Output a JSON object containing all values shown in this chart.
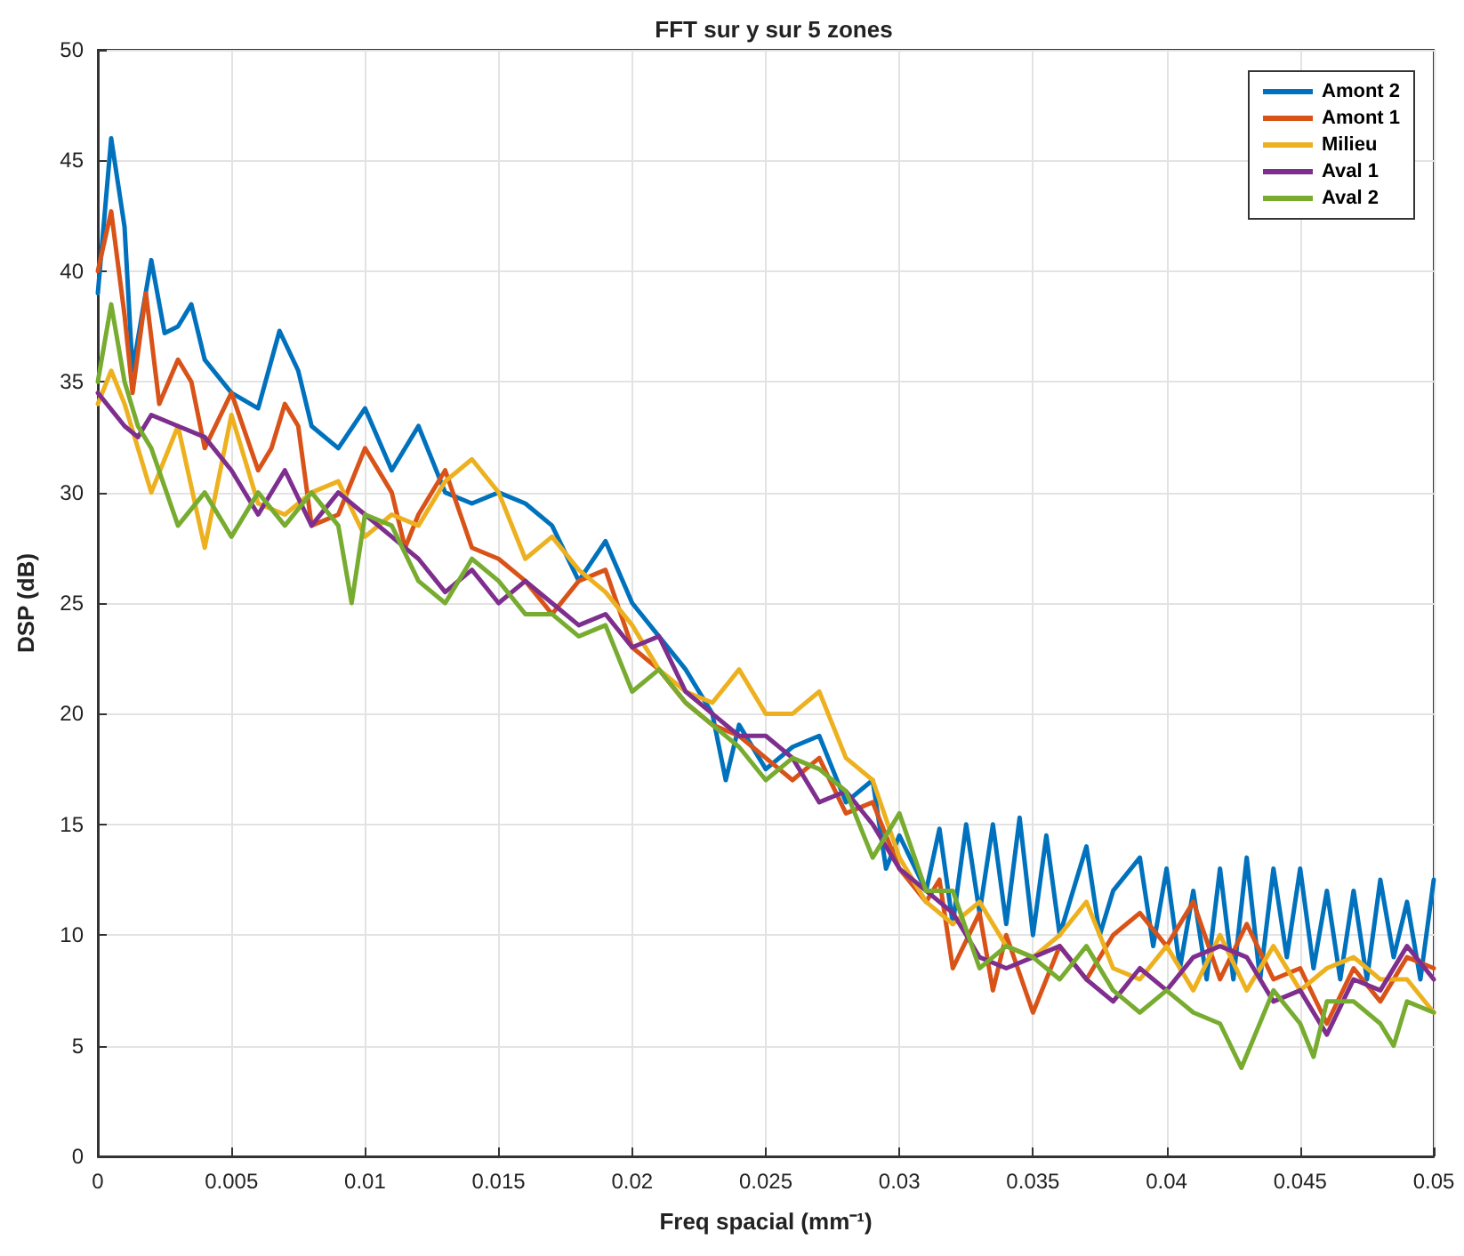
{
  "chart_data": {
    "type": "line",
    "title": "FFT sur y sur 5 zones",
    "xlabel": "Freq spacial (mm⁻¹)",
    "ylabel": "DSP (dB)",
    "xlim": [
      0,
      0.05
    ],
    "xticks": [
      0,
      0.005,
      0.01,
      0.015,
      0.02,
      0.025,
      0.03,
      0.035,
      0.04,
      0.045,
      0.05
    ],
    "ylim": [
      0,
      50
    ],
    "yticks": [
      0,
      5,
      10,
      15,
      20,
      25,
      30,
      35,
      40,
      45,
      50
    ],
    "grid": true,
    "legend": "top right",
    "line_style": "solid",
    "marker": "none",
    "series": [
      {
        "name": "Amont 2",
        "color": "#0072bd",
        "x": [
          0,
          0.0005,
          0.001,
          0.0013,
          0.002,
          0.0025,
          0.003,
          0.0035,
          0.004,
          0.005,
          0.006,
          0.0068,
          0.0075,
          0.008,
          0.009,
          0.01,
          0.011,
          0.012,
          0.013,
          0.014,
          0.015,
          0.016,
          0.017,
          0.018,
          0.019,
          0.02,
          0.021,
          0.022,
          0.023,
          0.0235,
          0.024,
          0.025,
          0.026,
          0.027,
          0.028,
          0.029,
          0.0295,
          0.03,
          0.031,
          0.0315,
          0.032,
          0.0325,
          0.033,
          0.0335,
          0.034,
          0.0345,
          0.035,
          0.0355,
          0.036,
          0.037,
          0.0375,
          0.038,
          0.039,
          0.0395,
          0.04,
          0.0405,
          0.041,
          0.0415,
          0.042,
          0.0425,
          0.043,
          0.0435,
          0.044,
          0.0445,
          0.045,
          0.0455,
          0.046,
          0.0465,
          0.047,
          0.0475,
          0.048,
          0.0485,
          0.049,
          0.0495,
          0.05
        ],
        "values": [
          39,
          46,
          42,
          35.5,
          40.5,
          37.2,
          37.5,
          38.5,
          36,
          34.5,
          33.8,
          37.3,
          35.5,
          33,
          32,
          33.8,
          31,
          33,
          30,
          29.5,
          30,
          29.5,
          28.5,
          26,
          27.8,
          25,
          23.5,
          22,
          20,
          17,
          19.5,
          17.5,
          18.5,
          19,
          16,
          17,
          13,
          14.5,
          12,
          14.8,
          10.5,
          15,
          11,
          15,
          10.5,
          15.3,
          10,
          14.5,
          10,
          14,
          10,
          12,
          13.5,
          9.5,
          13,
          8.5,
          12,
          8,
          13,
          8,
          13.5,
          8,
          13,
          9,
          13,
          8.5,
          12,
          8,
          12,
          8,
          12.5,
          9,
          11.5,
          8,
          12.5
        ]
      },
      {
        "name": "Amont 1",
        "color": "#d95319",
        "x": [
          0,
          0.0005,
          0.001,
          0.0013,
          0.0018,
          0.0023,
          0.003,
          0.0035,
          0.004,
          0.005,
          0.006,
          0.0065,
          0.007,
          0.0075,
          0.008,
          0.009,
          0.01,
          0.011,
          0.0115,
          0.012,
          0.013,
          0.014,
          0.015,
          0.016,
          0.017,
          0.018,
          0.019,
          0.02,
          0.021,
          0.022,
          0.023,
          0.024,
          0.025,
          0.026,
          0.027,
          0.028,
          0.029,
          0.03,
          0.031,
          0.0315,
          0.032,
          0.033,
          0.0335,
          0.034,
          0.035,
          0.036,
          0.037,
          0.038,
          0.039,
          0.04,
          0.041,
          0.042,
          0.043,
          0.044,
          0.045,
          0.046,
          0.047,
          0.048,
          0.049,
          0.05
        ],
        "values": [
          40,
          42.7,
          38,
          34.5,
          39,
          34,
          36,
          35,
          32,
          34.5,
          31,
          32,
          34,
          33,
          28.5,
          29,
          32,
          30,
          27.5,
          29,
          31,
          27.5,
          27,
          26,
          24.5,
          26,
          26.5,
          23,
          22,
          20.5,
          19.5,
          19,
          18,
          17,
          18,
          15.5,
          16,
          13,
          11.5,
          12.5,
          8.5,
          11,
          7.5,
          10,
          6.5,
          9.5,
          8,
          10,
          11,
          9.5,
          11.5,
          8,
          10.5,
          8,
          8.5,
          6,
          8.5,
          7,
          9,
          8.5
        ]
      },
      {
        "name": "Milieu",
        "color": "#edb120",
        "x": [
          0,
          0.0005,
          0.001,
          0.0015,
          0.002,
          0.003,
          0.004,
          0.005,
          0.006,
          0.007,
          0.008,
          0.009,
          0.01,
          0.011,
          0.012,
          0.013,
          0.014,
          0.015,
          0.016,
          0.017,
          0.018,
          0.019,
          0.02,
          0.021,
          0.022,
          0.023,
          0.024,
          0.025,
          0.026,
          0.027,
          0.028,
          0.029,
          0.03,
          0.031,
          0.032,
          0.033,
          0.034,
          0.035,
          0.036,
          0.037,
          0.038,
          0.039,
          0.04,
          0.041,
          0.042,
          0.043,
          0.044,
          0.045,
          0.046,
          0.047,
          0.048,
          0.049,
          0.05
        ],
        "values": [
          34,
          35.5,
          34,
          32,
          30,
          33,
          27.5,
          33.5,
          29.5,
          29,
          30,
          30.5,
          28,
          29,
          28.5,
          30.5,
          31.5,
          30,
          27,
          28,
          26.5,
          25.5,
          24,
          22,
          21,
          20.5,
          22,
          20,
          20,
          21,
          18,
          17,
          13.5,
          11.5,
          10.5,
          11.5,
          9.5,
          9,
          10,
          11.5,
          8.5,
          8,
          9.5,
          7.5,
          10,
          7.5,
          9.5,
          7.5,
          8.5,
          9,
          8,
          8,
          6.5
        ]
      },
      {
        "name": "Aval 1",
        "color": "#7e2f8e",
        "x": [
          0,
          0.001,
          0.0015,
          0.002,
          0.003,
          0.004,
          0.005,
          0.006,
          0.007,
          0.008,
          0.009,
          0.01,
          0.011,
          0.012,
          0.013,
          0.014,
          0.015,
          0.016,
          0.017,
          0.018,
          0.019,
          0.02,
          0.021,
          0.022,
          0.023,
          0.024,
          0.025,
          0.026,
          0.027,
          0.028,
          0.029,
          0.03,
          0.031,
          0.032,
          0.033,
          0.034,
          0.035,
          0.036,
          0.037,
          0.038,
          0.039,
          0.04,
          0.041,
          0.042,
          0.043,
          0.044,
          0.045,
          0.046,
          0.047,
          0.048,
          0.049,
          0.05
        ],
        "values": [
          34.5,
          33,
          32.5,
          33.5,
          33,
          32.5,
          31,
          29,
          31,
          28.5,
          30,
          29,
          28,
          27,
          25.5,
          26.5,
          25,
          26,
          25,
          24,
          24.5,
          23,
          23.5,
          21,
          20,
          19,
          19,
          18,
          16,
          16.5,
          15,
          13,
          12,
          11,
          9,
          8.5,
          9,
          9.5,
          8,
          7,
          8.5,
          7.5,
          9,
          9.5,
          9,
          7,
          7.5,
          5.5,
          8,
          7.5,
          9.5,
          8
        ]
      },
      {
        "name": "Aval 2",
        "color": "#77ac30",
        "x": [
          0,
          0.0005,
          0.001,
          0.0015,
          0.002,
          0.003,
          0.004,
          0.005,
          0.006,
          0.007,
          0.008,
          0.009,
          0.0095,
          0.01,
          0.011,
          0.012,
          0.013,
          0.014,
          0.015,
          0.016,
          0.017,
          0.018,
          0.019,
          0.02,
          0.021,
          0.022,
          0.023,
          0.024,
          0.025,
          0.026,
          0.027,
          0.028,
          0.029,
          0.03,
          0.031,
          0.032,
          0.033,
          0.034,
          0.035,
          0.036,
          0.037,
          0.038,
          0.039,
          0.04,
          0.041,
          0.042,
          0.0428,
          0.044,
          0.045,
          0.0455,
          0.046,
          0.047,
          0.048,
          0.0485,
          0.049,
          0.05
        ],
        "values": [
          35,
          38.5,
          35,
          33,
          32,
          28.5,
          30,
          28,
          30,
          28.5,
          30,
          28.5,
          25,
          29,
          28.5,
          26,
          25,
          27,
          26,
          24.5,
          24.5,
          23.5,
          24,
          21,
          22,
          20.5,
          19.5,
          18.5,
          17,
          18,
          17.5,
          16.5,
          13.5,
          15.5,
          12,
          12,
          8.5,
          9.5,
          9,
          8,
          9.5,
          7.5,
          6.5,
          7.5,
          6.5,
          6,
          4,
          7.5,
          6,
          4.5,
          7,
          7,
          6,
          5,
          7,
          6.5
        ]
      }
    ]
  }
}
